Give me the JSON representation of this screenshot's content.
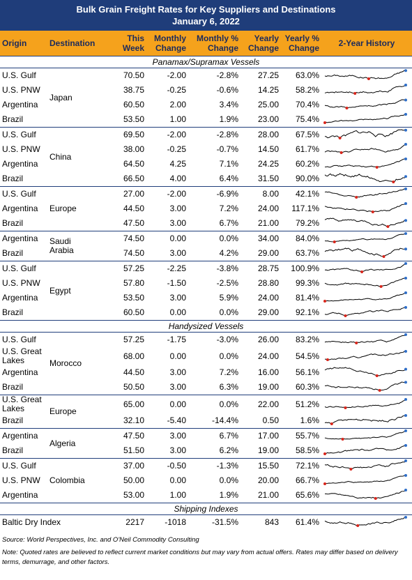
{
  "header": {
    "title": "Bulk Grain Freight Rates for Key Suppliers and Destinations",
    "date": "January 6, 2022"
  },
  "columns": [
    "Origin",
    "Destination",
    "This Week",
    "Monthly Change",
    "Monthly % Change",
    "Yearly Change",
    "Yearly % Change",
    "2-Year History"
  ],
  "sections": [
    {
      "title": "Panamax/Supramax Vessels",
      "groups": [
        {
          "destination": "Japan",
          "rows": [
            [
              "U.S. Gulf",
              "70.50",
              "-2.00",
              "-2.8%",
              "27.25",
              "63.0%"
            ],
            [
              "U.S. PNW",
              "38.75",
              "-0.25",
              "-0.6%",
              "14.25",
              "58.2%"
            ],
            [
              "Argentina",
              "60.50",
              "2.00",
              "3.4%",
              "25.00",
              "70.4%"
            ],
            [
              "Brazil",
              "53.50",
              "1.00",
              "1.9%",
              "23.00",
              "75.4%"
            ]
          ]
        },
        {
          "destination": "China",
          "rows": [
            [
              "U.S. Gulf",
              "69.50",
              "-2.00",
              "-2.8%",
              "28.00",
              "67.5%"
            ],
            [
              "U.S. PNW",
              "38.00",
              "-0.25",
              "-0.7%",
              "14.50",
              "61.7%"
            ],
            [
              "Argentina",
              "64.50",
              "4.25",
              "7.1%",
              "24.25",
              "60.2%"
            ],
            [
              "Brazil",
              "66.50",
              "4.00",
              "6.4%",
              "31.50",
              "90.0%"
            ]
          ]
        },
        {
          "destination": "Europe",
          "rows": [
            [
              "U.S. Gulf",
              "27.00",
              "-2.00",
              "-6.9%",
              "8.00",
              "42.1%"
            ],
            [
              "Argentina",
              "44.50",
              "3.00",
              "7.2%",
              "24.00",
              "117.1%"
            ],
            [
              "Brazil",
              "47.50",
              "3.00",
              "6.7%",
              "21.00",
              "79.2%"
            ]
          ]
        },
        {
          "destination": "Saudi Arabia",
          "rows": [
            [
              "Argentina",
              "74.50",
              "0.00",
              "0.0%",
              "34.00",
              "84.0%"
            ],
            [
              "Brazil",
              "74.50",
              "3.00",
              "4.2%",
              "29.00",
              "63.7%"
            ]
          ]
        },
        {
          "destination": "Egypt",
          "rows": [
            [
              "U.S. Gulf",
              "57.25",
              "-2.25",
              "-3.8%",
              "28.75",
              "100.9%"
            ],
            [
              "U.S. PNW",
              "57.80",
              "-1.50",
              "-2.5%",
              "28.80",
              "99.3%"
            ],
            [
              "Argentina",
              "53.50",
              "3.00",
              "5.9%",
              "24.00",
              "81.4%"
            ],
            [
              "Brazil",
              "60.50",
              "0.00",
              "0.0%",
              "29.00",
              "92.1%"
            ]
          ]
        }
      ]
    },
    {
      "title": "Handysized Vessels",
      "groups": [
        {
          "destination": "Morocco",
          "rows": [
            [
              "U.S. Gulf",
              "57.25",
              "-1.75",
              "-3.0%",
              "26.00",
              "83.2%"
            ],
            [
              "U.S. Great Lakes",
              "68.00",
              "0.00",
              "0.0%",
              "24.00",
              "54.5%"
            ],
            [
              "Argentina",
              "44.50",
              "3.00",
              "7.2%",
              "16.00",
              "56.1%"
            ],
            [
              "Brazil",
              "50.50",
              "3.00",
              "6.3%",
              "19.00",
              "60.3%"
            ]
          ]
        },
        {
          "destination": "Europe",
          "rows": [
            [
              "U.S. Great Lakes",
              "65.00",
              "0.00",
              "0.0%",
              "22.00",
              "51.2%"
            ],
            [
              "Brazil",
              "32.10",
              "-5.40",
              "-14.4%",
              "0.50",
              "1.6%"
            ]
          ]
        },
        {
          "destination": "Algeria",
          "rows": [
            [
              "Argentina",
              "47.50",
              "3.00",
              "6.7%",
              "17.00",
              "55.7%"
            ],
            [
              "Brazil",
              "51.50",
              "3.00",
              "6.2%",
              "19.00",
              "58.5%"
            ]
          ]
        },
        {
          "destination": "Colombia",
          "rows": [
            [
              "U.S. Gulf",
              "37.00",
              "-0.50",
              "-1.3%",
              "15.50",
              "72.1%"
            ],
            [
              "U.S. PNW",
              "50.00",
              "0.00",
              "0.0%",
              "20.00",
              "66.7%"
            ],
            [
              "Argentina",
              "53.00",
              "1.00",
              "1.9%",
              "21.00",
              "65.6%"
            ]
          ]
        }
      ]
    },
    {
      "title": "Shipping Indexes",
      "groups": [
        {
          "rows": [
            [
              "Baltic Dry Index",
              "2217",
              "-1018",
              "-31.5%",
              "843",
              "61.4%"
            ]
          ]
        }
      ]
    }
  ],
  "footer": {
    "source": "Source: World Perspectives, Inc. and O'Neil Commodity Consulting",
    "note": "Note: Quoted rates are believed to reflect current market conditions but may vary from actual offers. Rates may differ based on delivery terms, demurrage, and other factors."
  }
}
